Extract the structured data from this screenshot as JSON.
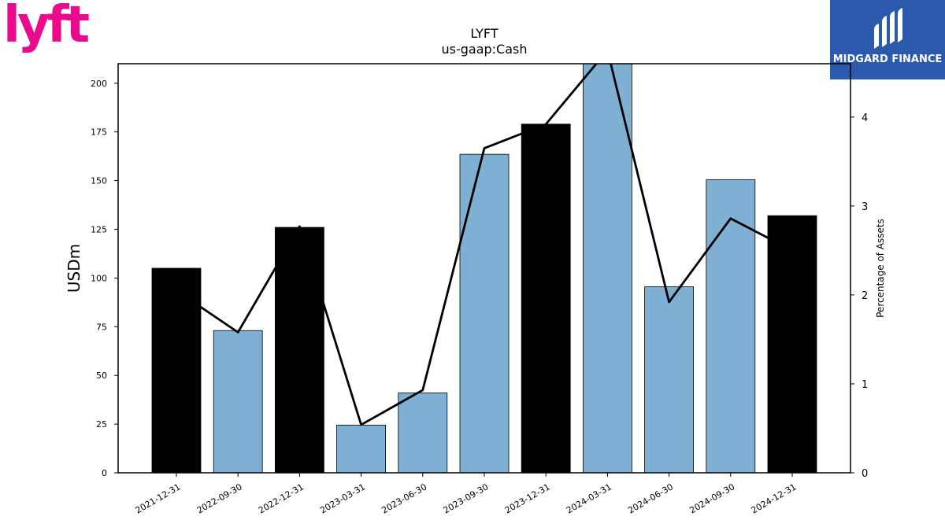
{
  "logos": {
    "left": {
      "text": "lyft",
      "color": "#ea0b8c",
      "icon": "lyft-logo-icon"
    },
    "right": {
      "text": "MIDGARD FINANCE",
      "background": "#2b5aad",
      "icon": "midgard-finance-logo-icon"
    }
  },
  "chart_data": {
    "type": "bar",
    "title": "LYFT",
    "subtitle": "us-gaap:Cash",
    "ylabel": "USDm",
    "y2label": "Percentage of Assets",
    "ylim": [
      0,
      210
    ],
    "y2lim": [
      0,
      4.6
    ],
    "yticks": [
      0,
      25,
      50,
      75,
      100,
      125,
      150,
      175,
      200
    ],
    "y2ticks": [
      0,
      1,
      2,
      3,
      4
    ],
    "grid": false,
    "categories": [
      "2021-12-31",
      "2022-09-30",
      "2022-12-31",
      "2023-03-31",
      "2023-06-30",
      "2023-09-30",
      "2023-12-31",
      "2024-03-31",
      "2024-06-30",
      "2024-09-30",
      "2024-12-31"
    ],
    "series": [
      {
        "type": "bar",
        "axis": "left",
        "values": [
          105,
          73,
          126,
          24.5,
          41,
          163.5,
          179,
          211,
          95.5,
          150.5,
          132
        ],
        "colors": [
          "#000000",
          "#7fb0d3",
          "#000000",
          "#7fb0d3",
          "#7fb0d3",
          "#7fb0d3",
          "#000000",
          "#7fb0d3",
          "#7fb0d3",
          "#7fb0d3",
          "#000000"
        ]
      },
      {
        "type": "line",
        "axis": "right",
        "color": "#000000",
        "values": [
          2.05,
          1.58,
          2.77,
          0.54,
          0.93,
          3.65,
          3.92,
          4.75,
          1.92,
          2.86,
          2.5
        ]
      }
    ]
  }
}
